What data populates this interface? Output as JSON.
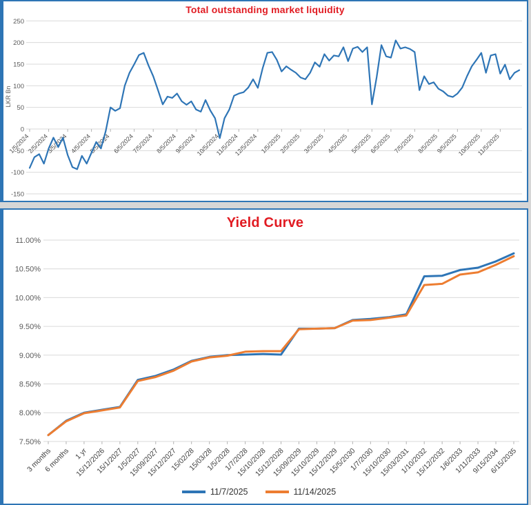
{
  "colors": {
    "title_red": "#e11b22",
    "line_blue": "#2e75b6",
    "line_orange": "#ed7d31",
    "gridline": "#d9d9d9",
    "tick_mark": "#b3b3b3",
    "axis_text": "#595959",
    "panel_border": "#2e75b5"
  },
  "chart_data": [
    {
      "type": "line",
      "title": "Total outstanding market liquidity",
      "ylabel": "LKR Bn",
      "ylim": [
        -150,
        250
      ],
      "grid": true,
      "y_ticks": [
        250,
        200,
        150,
        100,
        50,
        0,
        -50,
        -100,
        -150
      ],
      "x_labels": [
        "1/5/2024",
        "2/5/2024",
        "3/5/2024",
        "4/5/2024",
        "5/5/2024",
        "6/5/2024",
        "7/5/2024",
        "8/5/2024",
        "9/5/2024",
        "10/5/2024",
        "11/5/2024",
        "12/5/2024",
        "1/5/2025",
        "2/5/2025",
        "3/5/2025",
        "4/5/2025",
        "5/5/2025",
        "6/5/2025",
        "7/5/2025",
        "8/5/2025",
        "9/5/2025",
        "10/5/2025",
        "11/5/2025"
      ],
      "x_label_index": [
        0,
        4,
        8,
        13,
        17,
        22,
        26,
        31,
        35,
        40,
        44,
        48,
        53,
        57,
        62,
        67,
        72,
        76,
        81,
        86,
        90,
        95,
        99
      ],
      "series": [
        {
          "name": "Total outstanding market liquidity",
          "color": "#2e75b6",
          "values": [
            -90,
            -65,
            -58,
            -80,
            -45,
            -20,
            -42,
            -20,
            -60,
            -88,
            -93,
            -62,
            -80,
            -55,
            -30,
            -45,
            -5,
            50,
            42,
            48,
            100,
            130,
            150,
            171,
            176,
            147,
            122,
            90,
            57,
            75,
            72,
            82,
            64,
            56,
            64,
            45,
            40,
            67,
            43,
            25,
            -21,
            25,
            45,
            77,
            82,
            85,
            96,
            115,
            95,
            140,
            176,
            178,
            160,
            133,
            145,
            137,
            130,
            119,
            115,
            130,
            154,
            144,
            173,
            158,
            170,
            168,
            189,
            157,
            186,
            190,
            178,
            189,
            57,
            120,
            194,
            168,
            165,
            205,
            186,
            189,
            185,
            178,
            90,
            122,
            104,
            108,
            93,
            87,
            77,
            74,
            82,
            96,
            122,
            145,
            160,
            176,
            130,
            170,
            173,
            128,
            149,
            115,
            130,
            136
          ]
        }
      ]
    },
    {
      "type": "line",
      "title": "Yield Curve",
      "ylim": [
        7.5,
        11.0
      ],
      "grid": true,
      "legend_position": "bottom",
      "y_ticks": [
        "11.00%",
        "10.50%",
        "10.00%",
        "9.50%",
        "9.00%",
        "8.50%",
        "8.00%",
        "7.50%"
      ],
      "y_tick_values": [
        11.0,
        10.5,
        10.0,
        9.5,
        9.0,
        8.5,
        8.0,
        7.5
      ],
      "categories": [
        "3 months",
        "6 months",
        "1 yr",
        "15/12/2026",
        "15/1/2027",
        "1/5/2027",
        "15/09/2027",
        "15/12/2027",
        "15/02/28",
        "15/03/28",
        "1/5/2028",
        "1/7/2028",
        "15/10/2028",
        "15/12/2028",
        "15/09/2029",
        "15/10/2029",
        "15/12/2029",
        "15/5/2030",
        "1/7/2030",
        "15/10/2030",
        "15/03/2031",
        "1/10/2032",
        "15/12/2032",
        "1/6/2033",
        "1/11/2033",
        "9/15/2034",
        "6/15/2035"
      ],
      "series": [
        {
          "name": "11/7/2025",
          "color": "#2e75b6",
          "values": [
            7.61,
            7.86,
            8.0,
            8.05,
            8.1,
            8.57,
            8.64,
            8.75,
            8.9,
            8.97,
            9.0,
            9.01,
            9.02,
            9.01,
            9.46,
            9.46,
            9.47,
            9.61,
            9.63,
            9.66,
            9.71,
            10.37,
            10.38,
            10.48,
            10.52,
            10.63,
            10.77
          ]
        },
        {
          "name": "11/14/2025",
          "color": "#ed7d31",
          "values": [
            7.61,
            7.85,
            7.99,
            8.04,
            8.09,
            8.55,
            8.62,
            8.73,
            8.89,
            8.96,
            8.99,
            9.06,
            9.07,
            9.07,
            9.45,
            9.46,
            9.47,
            9.6,
            9.61,
            9.65,
            9.69,
            10.22,
            10.24,
            10.4,
            10.44,
            10.57,
            10.72
          ]
        }
      ]
    }
  ]
}
